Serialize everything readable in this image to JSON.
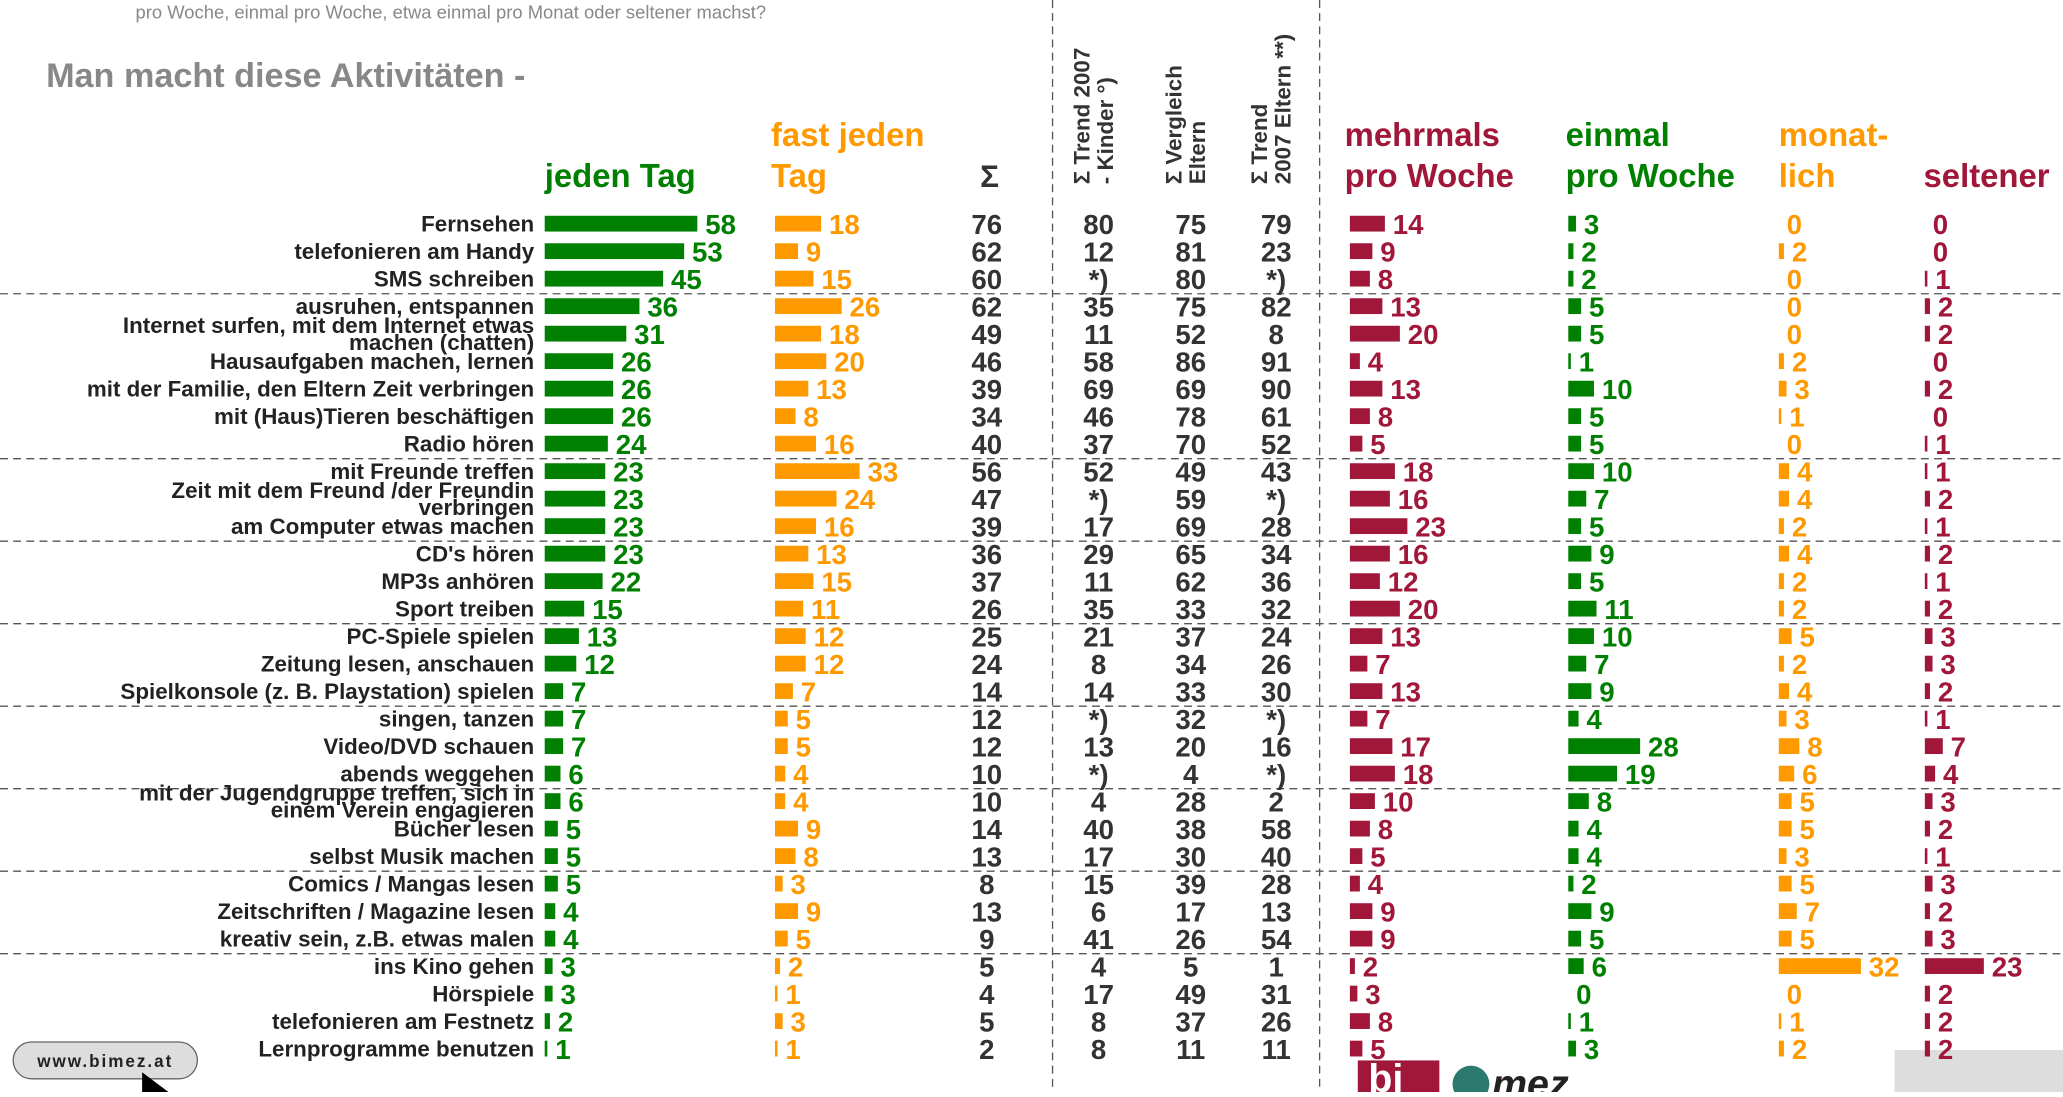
{
  "intro": "pro Woche, einmal pro Woche, etwa einmal pro Monat oder seltener machst?",
  "title": "Man macht diese Aktivitäten -",
  "headers": [
    [
      "jeden Tag"
    ],
    [
      "fast jeden",
      "Tag"
    ],
    [
      "Σ"
    ],
    [
      "Σ Trend 2007",
      "- Kinder °)"
    ],
    [
      "Σ Vergleich",
      "Eltern"
    ],
    [
      "Σ Trend",
      "2007 Eltern **)"
    ],
    [
      "mehrmals",
      "pro Woche"
    ],
    [
      "einmal",
      "pro Woche"
    ],
    [
      "monat-",
      "lich"
    ],
    [
      "seltener"
    ]
  ],
  "rows": [
    {
      "label": [
        "Fernsehen"
      ],
      "values": [
        58,
        18,
        76,
        80,
        75,
        79,
        14,
        3,
        0,
        0
      ]
    },
    {
      "label": [
        "telefonieren am Handy"
      ],
      "values": [
        53,
        9,
        62,
        12,
        81,
        23,
        9,
        2,
        2,
        0
      ]
    },
    {
      "label": [
        "SMS schreiben"
      ],
      "values": [
        45,
        15,
        60,
        "*)",
        80,
        "*)",
        8,
        2,
        0,
        1
      ]
    },
    {
      "label": [
        "ausruhen, entspannen"
      ],
      "values": [
        36,
        26,
        62,
        35,
        75,
        82,
        13,
        5,
        0,
        2
      ]
    },
    {
      "label": [
        "Internet surfen, mit dem Internet etwas",
        "machen (chatten)"
      ],
      "values": [
        31,
        18,
        49,
        11,
        52,
        8,
        20,
        5,
        0,
        2
      ]
    },
    {
      "label": [
        "Hausaufgaben machen, lernen"
      ],
      "values": [
        26,
        20,
        46,
        58,
        86,
        91,
        4,
        1,
        2,
        0
      ]
    },
    {
      "label": [
        "mit der Familie, den Eltern Zeit verbringen"
      ],
      "values": [
        26,
        13,
        39,
        69,
        69,
        90,
        13,
        10,
        3,
        2
      ]
    },
    {
      "label": [
        "mit (Haus)Tieren beschäftigen"
      ],
      "values": [
        26,
        8,
        34,
        46,
        78,
        61,
        8,
        5,
        1,
        0
      ]
    },
    {
      "label": [
        "Radio hören"
      ],
      "values": [
        24,
        16,
        40,
        37,
        70,
        52,
        5,
        5,
        0,
        1
      ]
    },
    {
      "label": [
        "mit Freunde treffen"
      ],
      "values": [
        23,
        33,
        56,
        52,
        49,
        43,
        18,
        10,
        4,
        1
      ]
    },
    {
      "label": [
        "Zeit mit dem Freund /der Freundin",
        "verbringen"
      ],
      "values": [
        23,
        24,
        47,
        "*)",
        59,
        "*)",
        16,
        7,
        4,
        2
      ]
    },
    {
      "label": [
        "am Computer etwas machen"
      ],
      "values": [
        23,
        16,
        39,
        17,
        69,
        28,
        23,
        5,
        2,
        1
      ]
    },
    {
      "label": [
        "CD's hören"
      ],
      "values": [
        23,
        13,
        36,
        29,
        65,
        34,
        16,
        9,
        4,
        2
      ]
    },
    {
      "label": [
        "MP3s anhören"
      ],
      "values": [
        22,
        15,
        37,
        11,
        62,
        36,
        12,
        5,
        2,
        1
      ]
    },
    {
      "label": [
        "Sport treiben"
      ],
      "values": [
        15,
        11,
        26,
        35,
        33,
        32,
        20,
        11,
        2,
        2
      ]
    },
    {
      "label": [
        "PC-Spiele spielen"
      ],
      "values": [
        13,
        12,
        25,
        21,
        37,
        24,
        13,
        10,
        5,
        3
      ]
    },
    {
      "label": [
        "Zeitung lesen, anschauen"
      ],
      "values": [
        12,
        12,
        24,
        8,
        34,
        26,
        7,
        7,
        2,
        3
      ]
    },
    {
      "label": [
        "Spielkonsole (z. B. Playstation) spielen"
      ],
      "values": [
        7,
        7,
        14,
        14,
        33,
        30,
        13,
        9,
        4,
        2
      ]
    },
    {
      "label": [
        "singen, tanzen"
      ],
      "values": [
        7,
        5,
        12,
        "*)",
        32,
        "*)",
        7,
        4,
        3,
        1
      ]
    },
    {
      "label": [
        "Video/DVD schauen"
      ],
      "values": [
        7,
        5,
        12,
        13,
        20,
        16,
        17,
        28,
        8,
        7
      ]
    },
    {
      "label": [
        "abends weggehen"
      ],
      "values": [
        6,
        4,
        10,
        "*)",
        4,
        "*)",
        18,
        19,
        6,
        4
      ]
    },
    {
      "label": [
        "mit der Jugendgruppe treffen, sich in",
        "einem Verein engagieren"
      ],
      "values": [
        6,
        4,
        10,
        4,
        28,
        2,
        10,
        8,
        5,
        3
      ]
    },
    {
      "label": [
        "Bücher lesen"
      ],
      "values": [
        5,
        9,
        14,
        40,
        38,
        58,
        8,
        4,
        5,
        2
      ]
    },
    {
      "label": [
        "selbst Musik machen"
      ],
      "values": [
        5,
        8,
        13,
        17,
        30,
        40,
        5,
        4,
        3,
        1
      ]
    },
    {
      "label": [
        "Comics / Mangas lesen"
      ],
      "values": [
        5,
        3,
        8,
        15,
        39,
        28,
        4,
        2,
        5,
        3
      ]
    },
    {
      "label": [
        "Zeitschriften / Magazine lesen"
      ],
      "values": [
        4,
        9,
        13,
        6,
        17,
        13,
        9,
        9,
        7,
        2
      ]
    },
    {
      "label": [
        "kreativ sein, z.B. etwas malen"
      ],
      "values": [
        4,
        5,
        9,
        41,
        26,
        54,
        9,
        5,
        5,
        3
      ]
    },
    {
      "label": [
        "ins Kino gehen"
      ],
      "values": [
        3,
        2,
        5,
        4,
        5,
        1,
        2,
        6,
        32,
        23
      ]
    },
    {
      "label": [
        "Hörspiele"
      ],
      "values": [
        3,
        1,
        4,
        17,
        49,
        31,
        3,
        0,
        0,
        2
      ]
    },
    {
      "label": [
        "telefonieren am Festnetz"
      ],
      "values": [
        2,
        3,
        5,
        8,
        37,
        26,
        8,
        1,
        1,
        2
      ]
    },
    {
      "label": [
        "Lernprogramme benutzen"
      ],
      "values": [
        1,
        1,
        2,
        8,
        11,
        11,
        5,
        3,
        2,
        2
      ]
    }
  ],
  "link": "www.bimez.at",
  "logo": [
    "bi",
    "mez"
  ]
}
